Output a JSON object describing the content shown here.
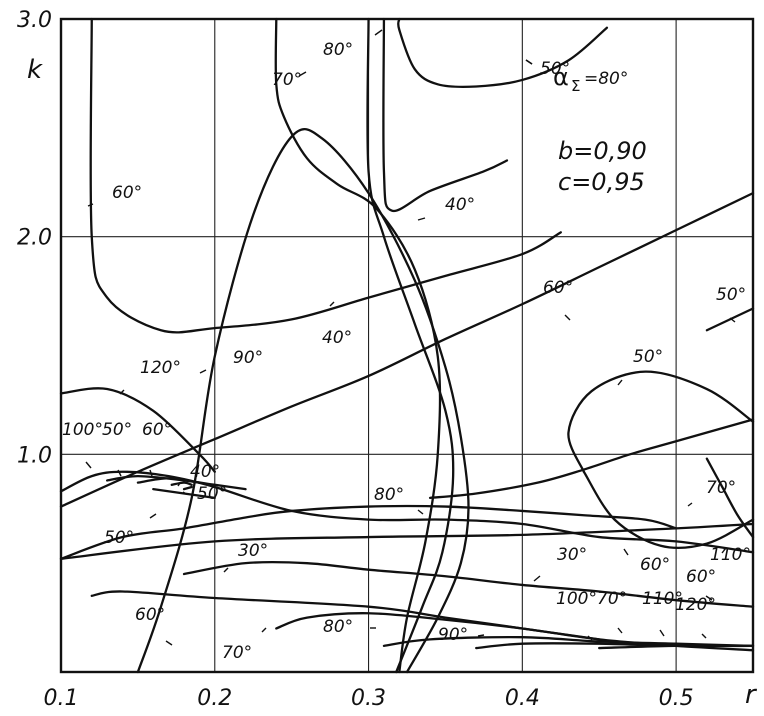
{
  "chart_data": {
    "type": "line",
    "title": "",
    "xlabel": "r",
    "ylabel": "k",
    "xlim": [
      0.1,
      0.55
    ],
    "ylim": [
      0.0,
      3.0
    ],
    "grid": true,
    "x_ticks": [
      "0.1",
      "0.2",
      "0.3",
      "0.4",
      "0.5"
    ],
    "y_ticks": [
      "1.0",
      "2.0",
      "3.0"
    ],
    "parameters": [
      "b=0,90",
      "c=0,95"
    ],
    "series": [
      {
        "name": "α_Σ=80°",
        "points": [
          [
            0.32,
            3.0
          ],
          [
            0.32,
            2.95
          ],
          [
            0.33,
            2.77
          ],
          [
            0.345,
            2.7
          ],
          [
            0.37,
            2.69
          ],
          [
            0.4,
            2.72
          ],
          [
            0.43,
            2.81
          ],
          [
            0.455,
            2.96
          ]
        ]
      },
      {
        "name": "70°",
        "points": [
          [
            0.24,
            3.0
          ],
          [
            0.24,
            2.7
          ],
          [
            0.245,
            2.55
          ],
          [
            0.26,
            2.36
          ],
          [
            0.28,
            2.24
          ],
          [
            0.305,
            2.13
          ],
          [
            0.33,
            1.85
          ],
          [
            0.345,
            1.45
          ],
          [
            0.345,
            1.0
          ],
          [
            0.337,
            0.6
          ],
          [
            0.325,
            0.25
          ],
          [
            0.32,
            0.0
          ]
        ]
      },
      {
        "name": "60°",
        "points": [
          [
            0.12,
            3.0
          ],
          [
            0.12,
            2.0
          ],
          [
            0.13,
            1.72
          ],
          [
            0.165,
            1.57
          ],
          [
            0.2,
            1.58
          ],
          [
            0.25,
            1.62
          ],
          [
            0.3,
            1.72
          ],
          [
            0.35,
            1.82
          ],
          [
            0.4,
            1.92
          ],
          [
            0.425,
            2.02
          ]
        ]
      },
      {
        "name": "40°",
        "points": [
          [
            0.3,
            3.0
          ],
          [
            0.3,
            2.3
          ],
          [
            0.31,
            2.0
          ],
          [
            0.33,
            1.6
          ],
          [
            0.35,
            1.2
          ],
          [
            0.355,
            0.9
          ],
          [
            0.348,
            0.55
          ],
          [
            0.335,
            0.3
          ],
          [
            0.318,
            0.0
          ]
        ]
      },
      {
        "name": "40°",
        "points": [
          [
            0.31,
            3.0
          ],
          [
            0.31,
            2.3
          ],
          [
            0.315,
            2.12
          ],
          [
            0.34,
            2.21
          ],
          [
            0.375,
            2.3
          ],
          [
            0.39,
            2.35
          ]
        ]
      },
      {
        "name": "60°",
        "points": [
          [
            0.15,
            0.0
          ],
          [
            0.165,
            0.3
          ],
          [
            0.185,
            0.8
          ],
          [
            0.2,
            1.45
          ],
          [
            0.225,
            2.1
          ],
          [
            0.25,
            2.46
          ],
          [
            0.27,
            2.45
          ],
          [
            0.3,
            2.2
          ],
          [
            0.33,
            1.8
          ],
          [
            0.35,
            1.4
          ],
          [
            0.36,
            1.08
          ],
          [
            0.365,
            0.76
          ],
          [
            0.36,
            0.5
          ],
          [
            0.345,
            0.25
          ],
          [
            0.325,
            0.0
          ]
        ]
      },
      {
        "name": "50°",
        "points": [
          [
            0.1,
            0.76
          ],
          [
            0.15,
            0.92
          ],
          [
            0.2,
            1.07
          ],
          [
            0.25,
            1.22
          ],
          [
            0.3,
            1.36
          ],
          [
            0.35,
            1.53
          ],
          [
            0.4,
            1.69
          ],
          [
            0.45,
            1.86
          ],
          [
            0.5,
            2.03
          ],
          [
            0.55,
            2.2
          ]
        ]
      },
      {
        "name": "50°",
        "points": [
          [
            0.52,
            1.57
          ],
          [
            0.55,
            1.67
          ]
        ]
      },
      {
        "name": "30°",
        "points": [
          [
            0.44,
            0.92
          ],
          [
            0.43,
            1.1
          ],
          [
            0.445,
            1.29
          ],
          [
            0.48,
            1.38
          ],
          [
            0.52,
            1.3
          ],
          [
            0.55,
            1.15
          ]
        ]
      },
      {
        "name": "30°",
        "points": [
          [
            0.44,
            0.92
          ],
          [
            0.46,
            0.7
          ],
          [
            0.49,
            0.58
          ],
          [
            0.52,
            0.59
          ],
          [
            0.55,
            0.7
          ]
        ]
      },
      {
        "name": "60°",
        "points": [
          [
            0.1,
            0.52
          ],
          [
            0.14,
            0.62
          ],
          [
            0.18,
            0.66
          ],
          [
            0.22,
            0.71
          ],
          [
            0.25,
            0.74
          ],
          [
            0.3,
            0.76
          ],
          [
            0.35,
            0.76
          ],
          [
            0.4,
            0.74
          ],
          [
            0.44,
            0.72
          ],
          [
            0.48,
            0.7
          ],
          [
            0.5,
            0.66
          ]
        ]
      },
      {
        "name": "30°",
        "points": [
          [
            0.1,
            0.52
          ],
          [
            0.2,
            0.6
          ],
          [
            0.3,
            0.62
          ],
          [
            0.4,
            0.63
          ],
          [
            0.5,
            0.66
          ],
          [
            0.55,
            0.68
          ]
        ]
      },
      {
        "name": "50°",
        "points": [
          [
            0.34,
            0.8
          ],
          [
            0.37,
            0.82
          ],
          [
            0.41,
            0.87
          ],
          [
            0.44,
            0.93
          ],
          [
            0.47,
            1.0
          ],
          [
            0.5,
            1.06
          ],
          [
            0.55,
            1.16
          ]
        ]
      },
      {
        "name": "50°",
        "points": [
          [
            0.18,
            0.45
          ],
          [
            0.22,
            0.5
          ],
          [
            0.26,
            0.5
          ],
          [
            0.3,
            0.47
          ],
          [
            0.35,
            0.44
          ],
          [
            0.4,
            0.4
          ],
          [
            0.45,
            0.37
          ],
          [
            0.5,
            0.33
          ],
          [
            0.55,
            0.3
          ]
        ]
      },
      {
        "name": "40°",
        "points": [
          [
            0.52,
            0.98
          ],
          [
            0.53,
            0.85
          ],
          [
            0.54,
            0.72
          ],
          [
            0.55,
            0.62
          ]
        ]
      },
      {
        "name": "60°",
        "points": [
          [
            0.1,
            1.28
          ],
          [
            0.13,
            1.3
          ],
          [
            0.16,
            1.2
          ],
          [
            0.19,
            1.0
          ],
          [
            0.2,
            0.92
          ]
        ]
      },
      {
        "name": "70°",
        "points": [
          [
            0.1,
            0.83
          ],
          [
            0.12,
            0.9
          ],
          [
            0.14,
            0.92
          ],
          [
            0.17,
            0.9
          ],
          [
            0.2,
            0.85
          ],
          [
            0.25,
            0.74
          ],
          [
            0.3,
            0.7
          ],
          [
            0.35,
            0.7
          ],
          [
            0.4,
            0.68
          ],
          [
            0.45,
            0.62
          ],
          [
            0.5,
            0.6
          ],
          [
            0.55,
            0.55
          ]
        ]
      },
      {
        "name": "80°",
        "points": [
          [
            0.13,
            0.88
          ],
          [
            0.15,
            0.9
          ],
          [
            0.18,
            0.88
          ],
          [
            0.2,
            0.86
          ],
          [
            0.22,
            0.84
          ]
        ]
      },
      {
        "name": "90°",
        "points": [
          [
            0.15,
            0.87
          ],
          [
            0.17,
            0.89
          ],
          [
            0.19,
            0.87
          ]
        ]
      },
      {
        "name": "110°",
        "points": [
          [
            0.172,
            0.86
          ],
          [
            0.18,
            0.87
          ],
          [
            0.185,
            0.86
          ]
        ]
      },
      {
        "name": "120°",
        "points": [
          [
            0.18,
            0.84
          ],
          [
            0.185,
            0.85
          ]
        ]
      },
      {
        "name": "100°",
        "points": [
          [
            0.16,
            0.84
          ],
          [
            0.18,
            0.82
          ],
          [
            0.2,
            0.8
          ]
        ]
      },
      {
        "name": "60°",
        "points": [
          [
            0.12,
            0.35
          ],
          [
            0.14,
            0.37
          ],
          [
            0.2,
            0.34
          ],
          [
            0.3,
            0.3
          ],
          [
            0.35,
            0.25
          ],
          [
            0.4,
            0.2
          ],
          [
            0.45,
            0.15
          ]
        ]
      },
      {
        "name": "70°",
        "points": [
          [
            0.24,
            0.2
          ],
          [
            0.26,
            0.25
          ],
          [
            0.3,
            0.27
          ],
          [
            0.35,
            0.24
          ],
          [
            0.4,
            0.2
          ],
          [
            0.45,
            0.15
          ],
          [
            0.5,
            0.12
          ],
          [
            0.55,
            0.1
          ]
        ]
      },
      {
        "name": "80°",
        "points": [
          [
            0.31,
            0.12
          ],
          [
            0.34,
            0.15
          ],
          [
            0.4,
            0.16
          ],
          [
            0.45,
            0.14
          ],
          [
            0.5,
            0.13
          ],
          [
            0.55,
            0.12
          ]
        ]
      },
      {
        "name": "90°",
        "points": [
          [
            0.37,
            0.11
          ],
          [
            0.4,
            0.13
          ],
          [
            0.45,
            0.13
          ],
          [
            0.5,
            0.12
          ],
          [
            0.55,
            0.12
          ]
        ]
      },
      {
        "name": "100°",
        "points": [
          [
            0.45,
            0.11
          ],
          [
            0.5,
            0.12
          ],
          [
            0.55,
            0.12
          ]
        ]
      }
    ],
    "annotations": [
      "α_Σ=80°",
      "80°",
      "70°",
      "60°",
      "40°",
      "40°",
      "60°",
      "50°",
      "50°",
      "60°",
      "30°",
      "70°",
      "80°",
      "90°",
      "110°",
      "120°",
      "100°",
      "50°",
      "60°",
      "40°",
      "50°",
      "50°",
      "30°",
      "60°",
      "70°",
      "80°",
      "90°",
      "100°",
      "70°",
      "110°",
      "120°",
      "60°",
      "50°"
    ]
  },
  "labels": {
    "alpha_sigma": "α",
    "alpha_sub": "Σ",
    "alpha_value": "=80°",
    "b": "b=0,90",
    "c": "c=0,95",
    "x_axis_name": "r",
    "y_axis_name": "k"
  }
}
